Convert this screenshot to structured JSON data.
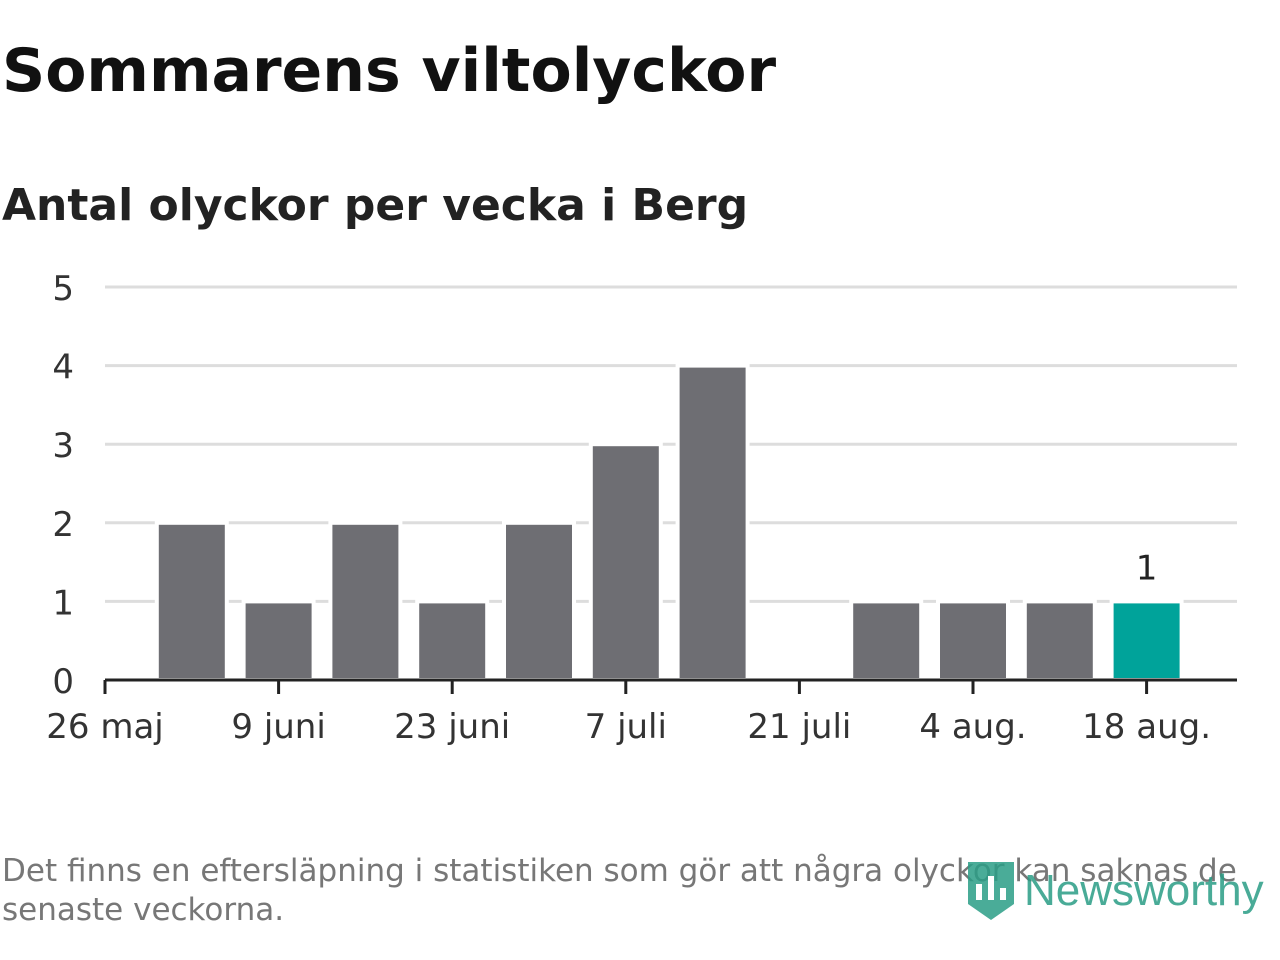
{
  "chart_data": {
    "type": "bar",
    "title": "Sommarens viltolyckor",
    "subtitle": "Antal olyckor per vecka i Berg",
    "x": [
      "2019-05-26",
      "2019-06-02",
      "2019-06-09",
      "2019-06-16",
      "2019-06-23",
      "2019-06-30",
      "2019-07-07",
      "2019-07-14",
      "2019-07-21",
      "2019-07-28",
      "2019-08-04",
      "2019-08-11",
      "2019-08-18"
    ],
    "values": [
      0,
      2,
      1,
      2,
      1,
      2,
      3,
      4,
      0,
      1,
      1,
      1,
      1
    ],
    "highlight_index": 12,
    "highlight_label": "1",
    "x_tick_labels": [
      "26 maj",
      "9 juni",
      "23 juni",
      "7 juli",
      "21 juli",
      "4 aug.",
      "18 aug."
    ],
    "x_tick_dates": [
      "2019-05-26",
      "2019-06-09",
      "2019-06-23",
      "2019-07-07",
      "2019-07-21",
      "2019-08-04",
      "2019-08-18"
    ],
    "y_ticks": [
      "0",
      "1",
      "2",
      "3",
      "4",
      "5"
    ],
    "ylim": [
      0,
      5
    ],
    "xlabel": "",
    "ylabel": "",
    "grid": true,
    "legend": "none",
    "bar_color": "#6e6e73",
    "highlight_color": "#00a39a",
    "grid_color": "#dddddd",
    "axis_color": "#222222"
  },
  "footnote": "Det finns en eftersläpning i statistiken som gör att några olyckor kan saknas de senaste veckorna.",
  "logo": {
    "text": "Newsworthy",
    "icon": "newsworthy-bar-icon",
    "color": "#2a9d86"
  }
}
